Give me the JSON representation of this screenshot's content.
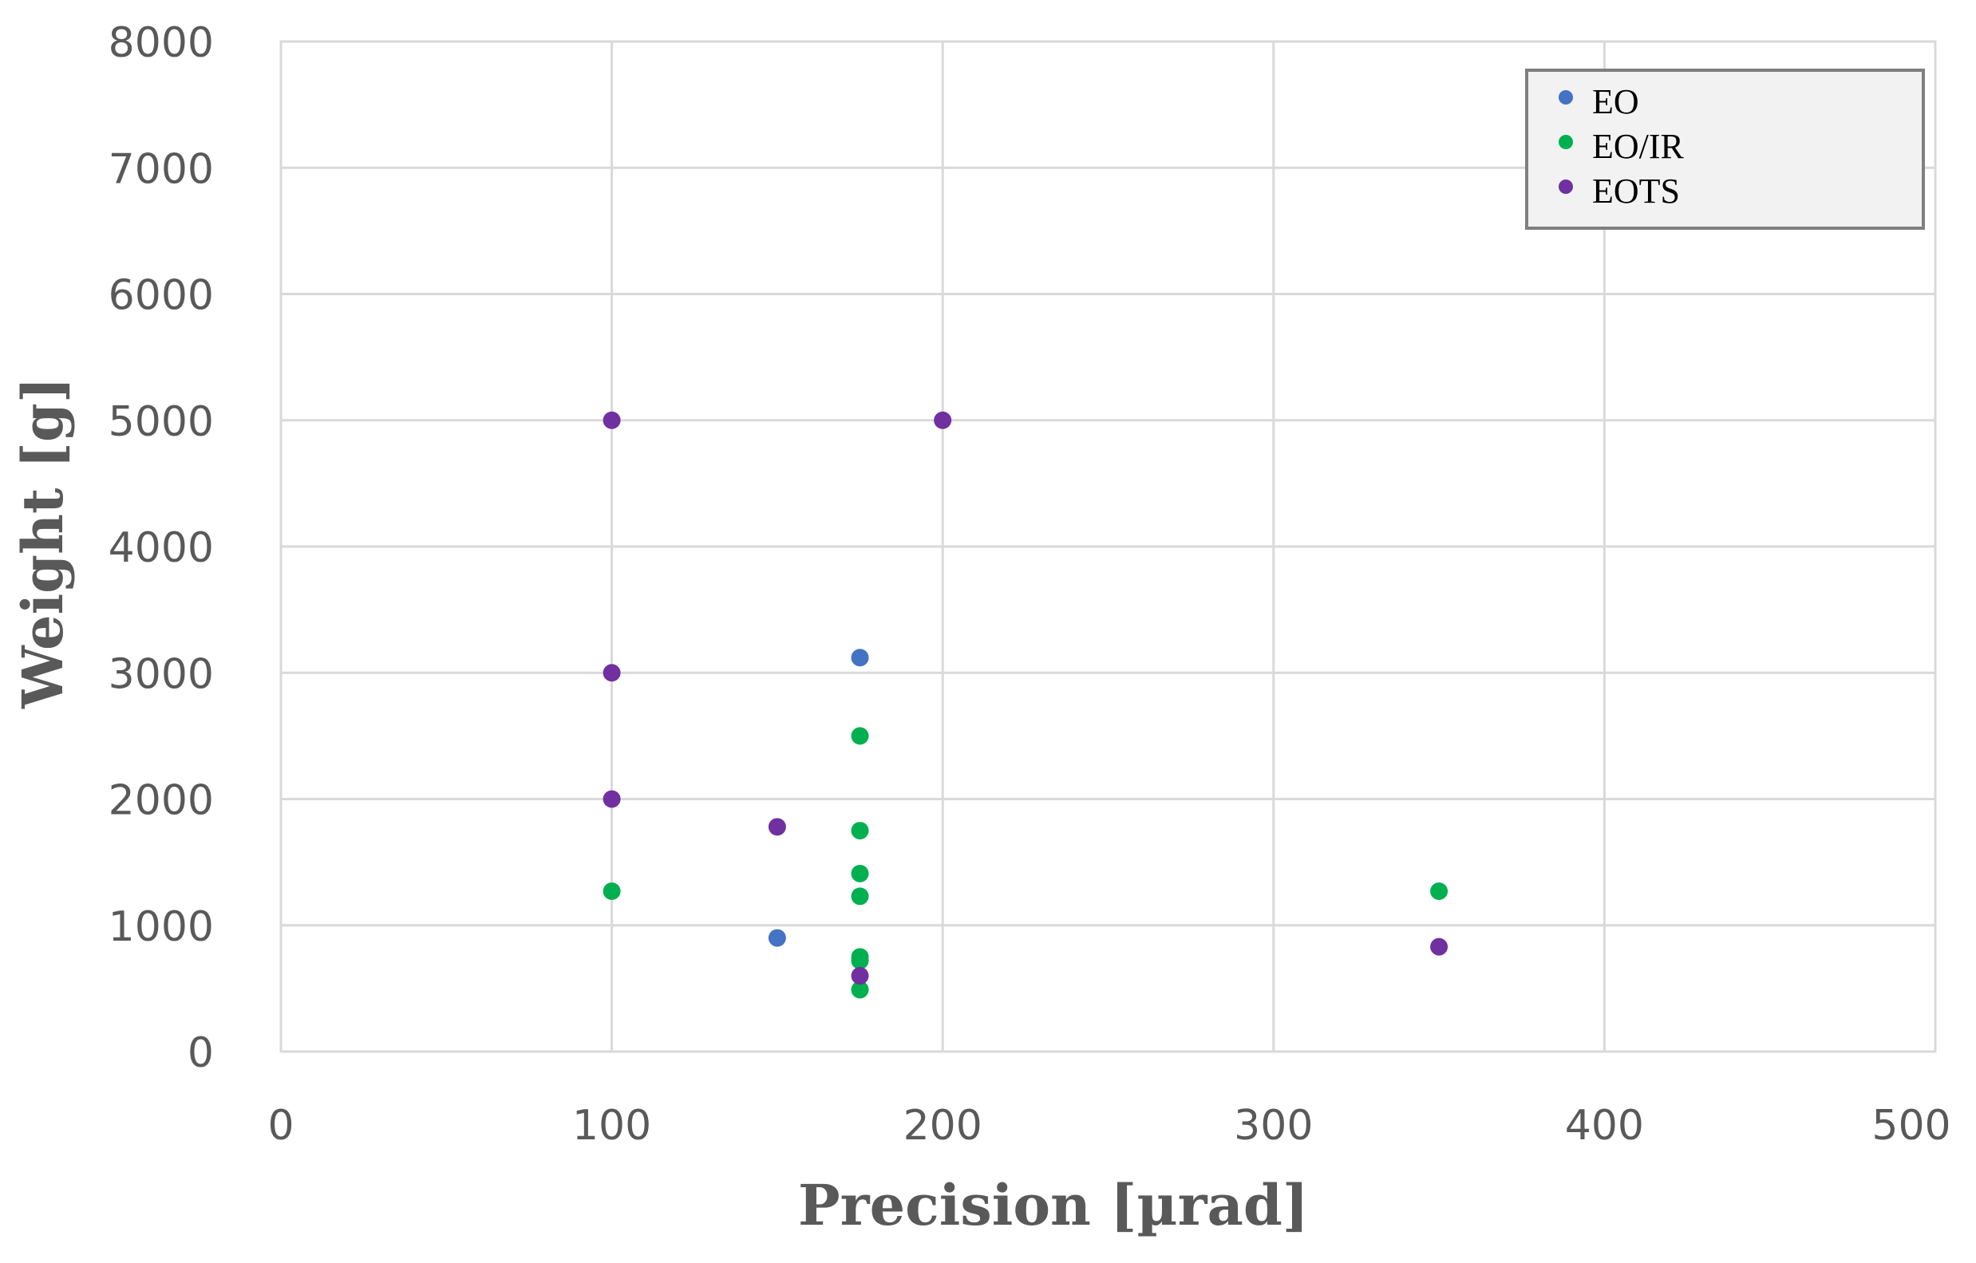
{
  "chart_data": {
    "type": "scatter",
    "title": "",
    "xlabel": "Precision [µrad]",
    "ylabel": "Weight  [g]",
    "xlim": [
      0,
      500
    ],
    "ylim": [
      0,
      8000
    ],
    "x_ticks": [
      0,
      100,
      200,
      300,
      400,
      500
    ],
    "y_ticks": [
      0,
      1000,
      2000,
      3000,
      4000,
      5000,
      6000,
      7000,
      8000
    ],
    "grid": true,
    "legend_position": "top-right",
    "series": [
      {
        "name": "EO",
        "color": "#4472C4",
        "points": [
          {
            "x": 175,
            "y": 3120
          },
          {
            "x": 150,
            "y": 900
          }
        ]
      },
      {
        "name": "EO/IR",
        "color": "#00B050",
        "points": [
          {
            "x": 175,
            "y": 2500
          },
          {
            "x": 175,
            "y": 1750
          },
          {
            "x": 175,
            "y": 1410
          },
          {
            "x": 175,
            "y": 1230
          },
          {
            "x": 175,
            "y": 750
          },
          {
            "x": 175,
            "y": 720
          },
          {
            "x": 175,
            "y": 490
          },
          {
            "x": 100,
            "y": 1270
          },
          {
            "x": 350,
            "y": 1270
          }
        ]
      },
      {
        "name": "EOTS",
        "color": "#7030A0",
        "points": [
          {
            "x": 100,
            "y": 5000
          },
          {
            "x": 200,
            "y": 5000
          },
          {
            "x": 100,
            "y": 3000
          },
          {
            "x": 100,
            "y": 2000
          },
          {
            "x": 150,
            "y": 1780
          },
          {
            "x": 175,
            "y": 600
          },
          {
            "x": 350,
            "y": 830
          }
        ]
      }
    ]
  }
}
